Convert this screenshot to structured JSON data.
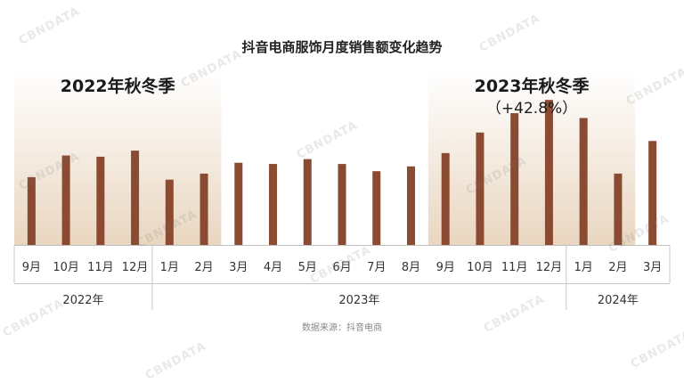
{
  "chart_data": {
    "type": "bar",
    "title": "抖音电商服饰月度销售额变化趋势",
    "source": "数据来源：抖音电商",
    "months": [
      "9月",
      "10月",
      "11月",
      "12月",
      "1月",
      "2月",
      "3月",
      "4月",
      "5月",
      "6月",
      "7月",
      "8月",
      "9月",
      "10月",
      "11月",
      "12月",
      "1月",
      "2月",
      "3月"
    ],
    "values": [
      28,
      37,
      36.5,
      39,
      27,
      29.5,
      34,
      33.5,
      35.5,
      33.5,
      30.5,
      32.5,
      38,
      46.5,
      54.5,
      60,
      52.5,
      29.5,
      43
    ],
    "years": [
      {
        "label": "2022年",
        "months": 4
      },
      {
        "label": "2023年",
        "months": 12
      },
      {
        "label": "2024年",
        "months": 3
      }
    ],
    "highlights": [
      {
        "label": "2022年秋冬季",
        "sublabel": "",
        "start": 0,
        "end": 5
      },
      {
        "label": "2023年秋冬季",
        "sublabel": "（+42.8%）",
        "start": 12,
        "end": 17
      }
    ],
    "bar_color": "#8B4A32",
    "highlight_color": "#E8D4BD",
    "ylim": [
      0,
      70
    ]
  },
  "watermark": "CBNDATA"
}
